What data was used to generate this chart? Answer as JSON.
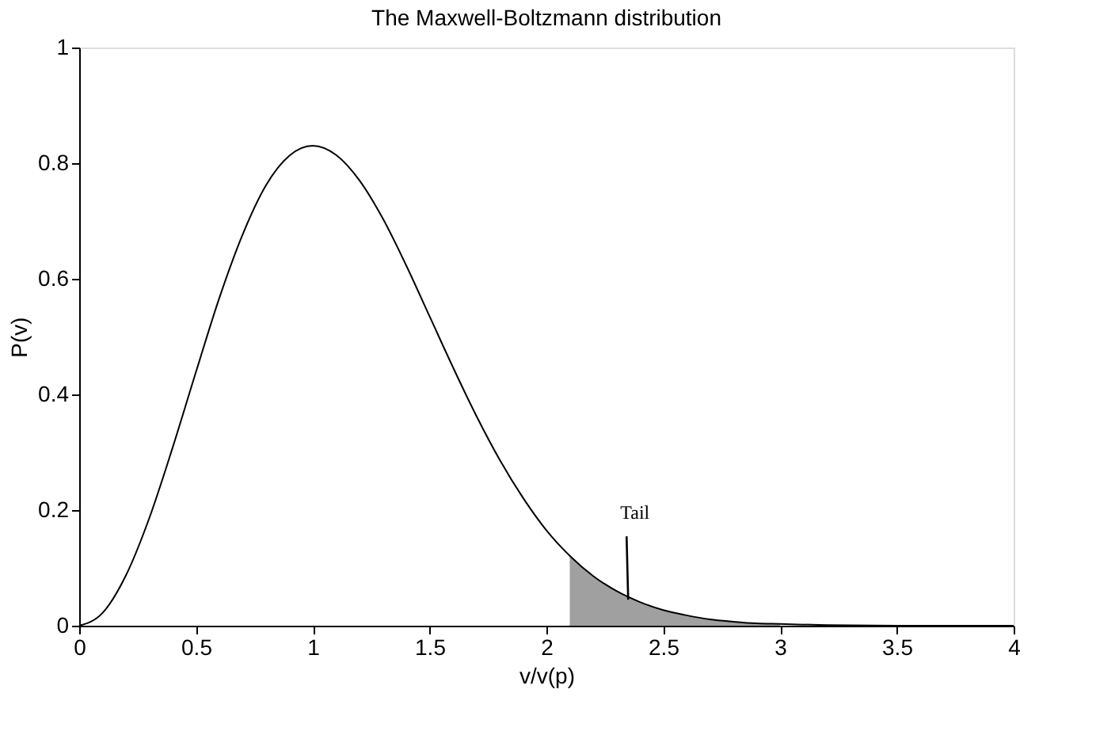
{
  "chart_data": {
    "type": "line",
    "title": "The Maxwell-Boltzmann distribution",
    "xlabel": "v/v(p)",
    "ylabel": "P(v)",
    "xlim": [
      0,
      4
    ],
    "ylim": [
      0,
      1
    ],
    "xticks": [
      0,
      0.5,
      1,
      1.5,
      2,
      2.5,
      3,
      3.5,
      4
    ],
    "yticks": [
      0,
      0.2,
      0.4,
      0.6,
      0.8,
      1
    ],
    "grid": false,
    "series": [
      {
        "color": "#000000",
        "x": [
          0,
          0.1,
          0.2,
          0.3,
          0.4,
          0.5,
          0.6,
          0.7,
          0.8,
          0.9,
          1.0,
          1.1,
          1.2,
          1.3,
          1.4,
          1.5,
          1.6,
          1.7,
          1.8,
          1.9,
          2.0,
          2.1,
          2.2,
          2.3,
          2.4,
          2.5,
          2.6,
          2.7,
          2.8,
          2.9,
          3.0,
          3.2,
          3.5,
          4.0
        ],
        "values": [
          0,
          0.022,
          0.087,
          0.186,
          0.308,
          0.439,
          0.567,
          0.677,
          0.762,
          0.813,
          0.83,
          0.814,
          0.77,
          0.704,
          0.623,
          0.535,
          0.447,
          0.363,
          0.287,
          0.221,
          0.165,
          0.121,
          0.086,
          0.06,
          0.041,
          0.027,
          0.018,
          0.011,
          0.007,
          0.004,
          0.003,
          0.001,
          0,
          0
        ]
      },
      {
        "type": "area",
        "color": "#888888",
        "x": [
          2.1,
          2.2,
          2.3,
          2.4,
          2.5,
          2.6,
          2.7,
          2.8,
          2.9,
          3.0
        ],
        "values": [
          0.121,
          0.086,
          0.06,
          0.041,
          0.027,
          0.018,
          0.011,
          0.007,
          0.004,
          0.003
        ]
      }
    ],
    "annotations": [
      {
        "text": "Tail",
        "x": 2.35,
        "y": 0.045
      }
    ]
  }
}
